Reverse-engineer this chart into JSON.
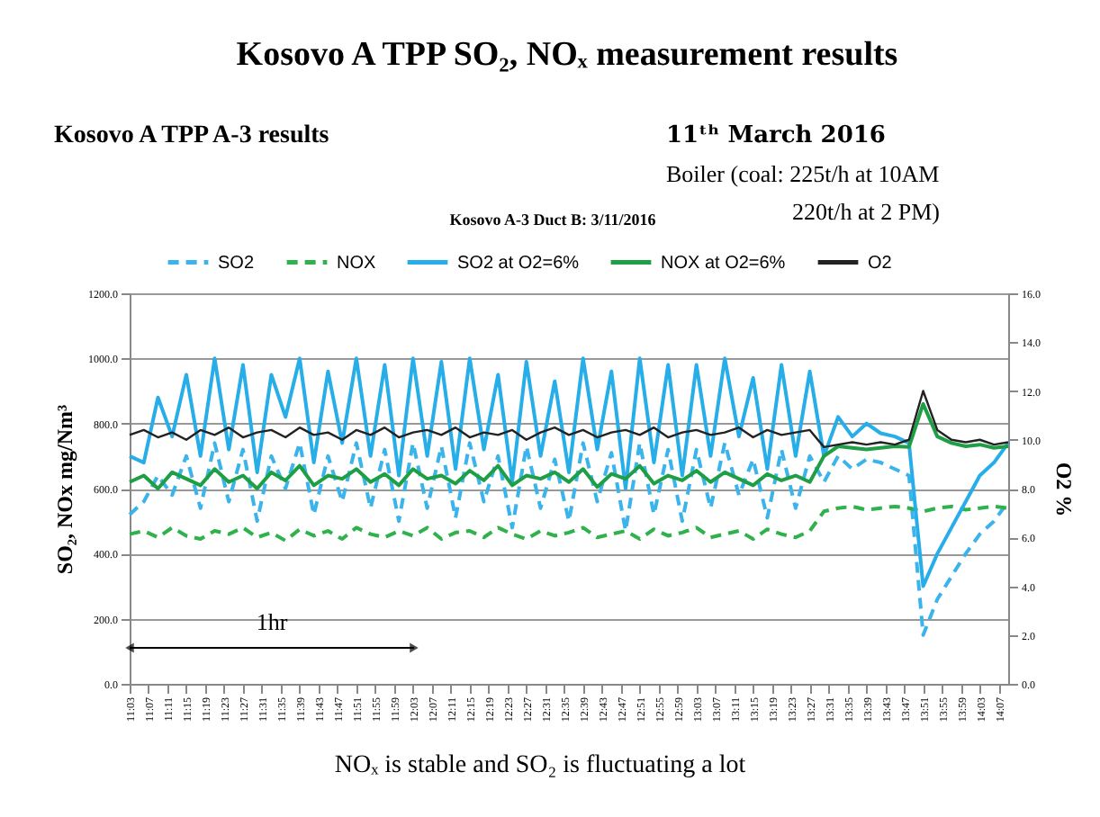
{
  "chart_data": {
    "type": "line",
    "title": "Kosovo A TPP SO₂, NOₓ measurement results",
    "subtitle": "Kosovo A TPP A-3 results",
    "annotations": [
      "11ᵗʰ March 2016",
      "Boiler  (coal: 225t/h at 10AM",
      "220t/h at 2 PM)",
      "Kosovo A-3 Duct B: 3/11/2016",
      "NOₓ is stable  and SO₂ is fluctuating a lot",
      "1hr"
    ],
    "ylabel": "SO₂, NOx mg/Nm³",
    "y2label": "O2 %",
    "x": [
      11.05,
      11.1,
      11.15,
      11.2,
      11.25,
      11.3,
      11.35,
      11.4,
      11.45,
      11.5,
      11.55,
      11.6,
      11.65,
      11.7,
      11.75,
      11.8,
      11.85,
      11.9,
      11.95,
      12.0,
      12.05,
      12.1,
      12.15,
      12.2,
      12.25,
      12.3,
      12.35,
      12.4,
      12.45,
      12.5,
      12.55,
      12.6,
      12.65,
      12.7,
      12.75,
      12.8,
      12.85,
      12.9,
      12.95,
      13.0,
      13.05,
      13.1,
      13.15,
      13.2,
      13.25,
      13.3,
      13.35,
      13.4,
      13.45,
      13.5,
      13.55,
      13.6,
      13.65,
      13.7,
      13.75,
      13.8,
      13.85,
      13.9,
      13.95,
      14.0,
      14.05,
      14.1,
      14.15
    ],
    "series": [
      {
        "name": "SO2",
        "color": "#3ab4ea",
        "line_style": "dashed",
        "values": [
          520,
          560,
          640,
          580,
          700,
          540,
          740,
          560,
          720,
          500,
          700,
          600,
          740,
          520,
          700,
          560,
          740,
          540,
          720,
          500,
          740,
          540,
          730,
          510,
          740,
          560,
          700,
          480,
          730,
          540,
          690,
          500,
          740,
          560,
          710,
          470,
          740,
          520,
          720,
          500,
          720,
          540,
          740,
          580,
          690,
          510,
          720,
          540,
          700,
          620,
          700,
          660,
          690,
          680,
          660,
          640,
          150,
          260,
          330,
          400,
          460,
          500,
          560
        ]
      },
      {
        "name": "NOX",
        "color": "#2fb14c",
        "line_style": "dashed",
        "values": [
          460,
          470,
          450,
          480,
          455,
          445,
          470,
          460,
          480,
          450,
          465,
          440,
          475,
          455,
          470,
          445,
          480,
          460,
          450,
          470,
          455,
          480,
          445,
          465,
          470,
          450,
          480,
          460,
          445,
          470,
          455,
          465,
          480,
          450,
          460,
          470,
          445,
          475,
          455,
          465,
          480,
          450,
          460,
          470,
          445,
          475,
          460,
          450,
          470,
          530,
          540,
          545,
          535,
          540,
          545,
          540,
          530,
          540,
          545,
          535,
          540,
          545,
          540
        ]
      },
      {
        "name": "SO2 at O2=6%",
        "color": "#27aee8",
        "line_style": "solid",
        "values": [
          700,
          680,
          880,
          760,
          950,
          700,
          1000,
          720,
          980,
          650,
          950,
          820,
          1000,
          680,
          960,
          740,
          1000,
          700,
          980,
          640,
          1000,
          700,
          990,
          660,
          1000,
          720,
          950,
          620,
          990,
          700,
          930,
          650,
          1000,
          720,
          960,
          600,
          1000,
          680,
          980,
          640,
          980,
          700,
          1000,
          760,
          940,
          660,
          980,
          700,
          960,
          700,
          820,
          760,
          800,
          770,
          760,
          740,
          300,
          400,
          480,
          560,
          640,
          680,
          740
        ]
      },
      {
        "name": "NOX at O2=6%",
        "color": "#1e9e45",
        "line_style": "solid",
        "values": [
          620,
          640,
          600,
          650,
          630,
          610,
          660,
          620,
          640,
          600,
          650,
          625,
          670,
          610,
          640,
          630,
          660,
          620,
          645,
          610,
          660,
          630,
          640,
          615,
          655,
          625,
          670,
          610,
          640,
          630,
          650,
          620,
          660,
          605,
          645,
          630,
          670,
          615,
          640,
          625,
          655,
          620,
          650,
          630,
          610,
          645,
          625,
          640,
          620,
          700,
          730,
          725,
          720,
          725,
          730,
          728,
          860,
          760,
          740,
          730,
          735,
          725,
          730
        ]
      },
      {
        "name": "O2",
        "color": "#222222",
        "line_style": "solid",
        "axis": "y2",
        "values": [
          10.2,
          10.4,
          10.1,
          10.3,
          10.0,
          10.4,
          10.2,
          10.5,
          10.1,
          10.3,
          10.4,
          10.1,
          10.5,
          10.2,
          10.3,
          10.0,
          10.4,
          10.2,
          10.5,
          10.1,
          10.3,
          10.4,
          10.2,
          10.5,
          10.1,
          10.3,
          10.2,
          10.4,
          10.0,
          10.3,
          10.5,
          10.2,
          10.4,
          10.1,
          10.3,
          10.4,
          10.2,
          10.5,
          10.1,
          10.3,
          10.4,
          10.2,
          10.3,
          10.5,
          10.1,
          10.4,
          10.2,
          10.3,
          10.4,
          9.7,
          9.8,
          9.9,
          9.8,
          9.9,
          9.8,
          10.0,
          12.0,
          10.4,
          10.0,
          9.9,
          10.0,
          9.8,
          9.9
        ]
      }
    ],
    "xlim": [
      11.05,
      14.15
    ],
    "xticks": [
      {
        "value": 11.05,
        "label": "11:03"
      },
      {
        "value": 11.1167,
        "label": "11:07"
      },
      {
        "value": 11.1833,
        "label": "11:11"
      },
      {
        "value": 11.25,
        "label": "11:15"
      },
      {
        "value": 11.3167,
        "label": "11:19"
      },
      {
        "value": 11.3833,
        "label": "11:23"
      },
      {
        "value": 11.45,
        "label": "11:27"
      },
      {
        "value": 11.5167,
        "label": "11:31"
      },
      {
        "value": 11.5833,
        "label": "11:35"
      },
      {
        "value": 11.65,
        "label": "11:39"
      },
      {
        "value": 11.7167,
        "label": "11:43"
      },
      {
        "value": 11.7833,
        "label": "11:47"
      },
      {
        "value": 11.85,
        "label": "11:51"
      },
      {
        "value": 11.9167,
        "label": "11:55"
      },
      {
        "value": 11.9833,
        "label": "11:59"
      },
      {
        "value": 12.05,
        "label": "12:03"
      },
      {
        "value": 12.1167,
        "label": "12:07"
      },
      {
        "value": 12.1833,
        "label": "12:11"
      },
      {
        "value": 12.25,
        "label": "12:15"
      },
      {
        "value": 12.3167,
        "label": "12:19"
      },
      {
        "value": 12.3833,
        "label": "12:23"
      },
      {
        "value": 12.45,
        "label": "12:27"
      },
      {
        "value": 12.5167,
        "label": "12:31"
      },
      {
        "value": 12.5833,
        "label": "12:35"
      },
      {
        "value": 12.65,
        "label": "12:39"
      },
      {
        "value": 12.7167,
        "label": "12:43"
      },
      {
        "value": 12.7833,
        "label": "12:47"
      },
      {
        "value": 12.85,
        "label": "12:51"
      },
      {
        "value": 12.9167,
        "label": "12:55"
      },
      {
        "value": 12.9833,
        "label": "12:59"
      },
      {
        "value": 13.05,
        "label": "13:03"
      },
      {
        "value": 13.1167,
        "label": "13:07"
      },
      {
        "value": 13.1833,
        "label": "13:11"
      },
      {
        "value": 13.25,
        "label": "13:15"
      },
      {
        "value": 13.3167,
        "label": "13:19"
      },
      {
        "value": 13.3833,
        "label": "13:23"
      },
      {
        "value": 13.45,
        "label": "13:27"
      },
      {
        "value": 13.5167,
        "label": "13:31"
      },
      {
        "value": 13.5833,
        "label": "13:35"
      },
      {
        "value": 13.65,
        "label": "13:39"
      },
      {
        "value": 13.7167,
        "label": "13:43"
      },
      {
        "value": 13.7833,
        "label": "13:47"
      },
      {
        "value": 13.85,
        "label": "13:51"
      },
      {
        "value": 13.9167,
        "label": "13:55"
      },
      {
        "value": 13.9833,
        "label": "13:59"
      },
      {
        "value": 14.05,
        "label": "14:03"
      },
      {
        "value": 14.1167,
        "label": "14:07"
      }
    ],
    "ylim": [
      0,
      1200
    ],
    "yticks": [
      {
        "value": 0,
        "label": "0.0"
      },
      {
        "value": 200,
        "label": "200.0"
      },
      {
        "value": 400,
        "label": "400.0"
      },
      {
        "value": 600,
        "label": "600.0"
      },
      {
        "value": 800,
        "label": "800.0"
      },
      {
        "value": 1000,
        "label": "1000.0"
      },
      {
        "value": 1200,
        "label": "1200.0"
      }
    ],
    "y2lim": [
      0,
      16
    ],
    "y2ticks": [
      {
        "value": 0,
        "label": "0.0"
      },
      {
        "value": 2,
        "label": "2.0"
      },
      {
        "value": 4,
        "label": "4.0"
      },
      {
        "value": 6,
        "label": "6.0"
      },
      {
        "value": 8,
        "label": "8.0"
      },
      {
        "value": 10,
        "label": "10.0"
      },
      {
        "value": 12,
        "label": "12.0"
      },
      {
        "value": 14,
        "label": "14.0"
      },
      {
        "value": 16,
        "label": "16.0"
      }
    ],
    "grid": "y",
    "legend": "top",
    "marker": "none"
  }
}
